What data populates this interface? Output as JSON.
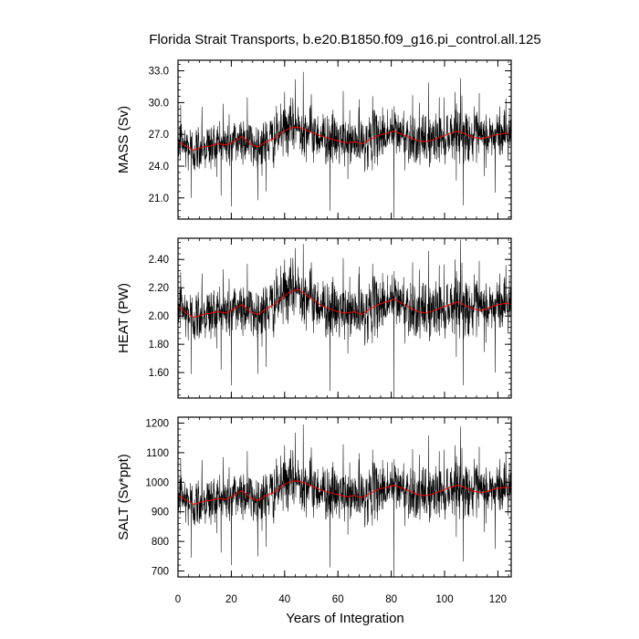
{
  "chart_data": {
    "type": "line",
    "title": "Florida Strait Transports, b.e20.B1850.f09_g16.pi_control.all.125",
    "xlabel": "Years of Integration",
    "xlim": [
      0,
      125
    ],
    "xticks": [
      0,
      20,
      40,
      60,
      80,
      100,
      120
    ],
    "xtick_labels": [
      "0",
      "20",
      "40",
      "60",
      "80",
      "100",
      "120"
    ],
    "colors": {
      "monthly": "#000000",
      "smoothed": "#ff0000"
    },
    "panels": [
      {
        "ylabel": "MASS (Sv)",
        "ylim": [
          19.0,
          34.0
        ],
        "yticks": [
          21.0,
          24.0,
          27.0,
          30.0,
          33.0
        ],
        "ytick_labels": [
          "21.0",
          "24.0",
          "27.0",
          "30.0",
          "33.0"
        ],
        "smooth_x": [
          0,
          3,
          6,
          9,
          12,
          15,
          18,
          21,
          24,
          27,
          30,
          33,
          36,
          39,
          42,
          45,
          48,
          51,
          54,
          57,
          60,
          63,
          66,
          69,
          72,
          75,
          78,
          81,
          84,
          87,
          90,
          93,
          96,
          99,
          102,
          105,
          108,
          111,
          114,
          117,
          120,
          123,
          125
        ],
        "smooth_y": [
          26.3,
          25.9,
          25.5,
          25.8,
          25.9,
          26.1,
          26.0,
          26.3,
          26.8,
          26.1,
          25.8,
          26.3,
          26.6,
          27.2,
          27.6,
          27.7,
          27.4,
          27.1,
          26.8,
          26.6,
          26.4,
          26.2,
          26.3,
          26.1,
          26.5,
          26.9,
          27.1,
          27.3,
          27.0,
          26.7,
          26.4,
          26.3,
          26.5,
          26.8,
          27.1,
          27.3,
          27.0,
          26.7,
          26.6,
          26.8,
          27.0,
          27.1,
          27.0
        ],
        "noise_amplitude": 1.2,
        "spikes": [
          [
            1,
            29.8
          ],
          [
            5,
            21.0
          ],
          [
            9,
            29.6
          ],
          [
            17,
            29.9
          ],
          [
            20,
            20.2
          ],
          [
            26,
            30.5
          ],
          [
            33,
            21.6
          ],
          [
            40,
            31.0
          ],
          [
            44,
            32.2
          ],
          [
            47,
            32.9
          ],
          [
            50,
            30.8
          ],
          [
            57,
            19.8
          ],
          [
            62,
            31.1
          ],
          [
            68,
            30.3
          ],
          [
            73,
            30.6
          ],
          [
            81,
            19.1
          ],
          [
            88,
            30.7
          ],
          [
            94,
            31.9
          ],
          [
            98,
            30.5
          ],
          [
            104,
            31.0
          ],
          [
            106,
            32.3
          ],
          [
            107,
            20.3
          ],
          [
            113,
            30.9
          ],
          [
            119,
            21.5
          ],
          [
            123,
            30.4
          ]
        ]
      },
      {
        "ylabel": "HEAT (PW)",
        "ylim": [
          1.42,
          2.55
        ],
        "yticks": [
          1.6,
          1.8,
          2.0,
          2.2,
          2.4
        ],
        "ytick_labels": [
          "1.60",
          "1.80",
          "2.00",
          "2.20",
          "2.40"
        ],
        "smooth_x": [
          0,
          3,
          6,
          9,
          12,
          15,
          18,
          21,
          24,
          27,
          30,
          33,
          36,
          39,
          42,
          45,
          48,
          51,
          54,
          57,
          60,
          63,
          66,
          69,
          72,
          75,
          78,
          81,
          84,
          87,
          90,
          93,
          96,
          99,
          102,
          105,
          108,
          111,
          114,
          117,
          120,
          123,
          125
        ],
        "smooth_y": [
          2.07,
          2.02,
          1.99,
          2.01,
          2.02,
          2.03,
          2.02,
          2.05,
          2.08,
          2.03,
          2.01,
          2.05,
          2.08,
          2.13,
          2.17,
          2.19,
          2.15,
          2.11,
          2.07,
          2.05,
          2.03,
          2.02,
          2.03,
          2.01,
          2.05,
          2.08,
          2.1,
          2.12,
          2.09,
          2.06,
          2.03,
          2.02,
          2.04,
          2.06,
          2.08,
          2.1,
          2.07,
          2.05,
          2.04,
          2.06,
          2.08,
          2.09,
          2.08
        ],
        "noise_amplitude": 0.1,
        "spikes": [
          [
            1,
            2.31
          ],
          [
            5,
            1.59
          ],
          [
            9,
            2.3
          ],
          [
            17,
            2.33
          ],
          [
            20,
            1.51
          ],
          [
            26,
            2.37
          ],
          [
            33,
            1.64
          ],
          [
            40,
            2.4
          ],
          [
            44,
            2.48
          ],
          [
            47,
            2.51
          ],
          [
            50,
            2.38
          ],
          [
            57,
            1.47
          ],
          [
            62,
            2.41
          ],
          [
            68,
            2.35
          ],
          [
            73,
            2.37
          ],
          [
            81,
            1.42
          ],
          [
            88,
            2.38
          ],
          [
            94,
            2.46
          ],
          [
            98,
            2.36
          ],
          [
            104,
            2.4
          ],
          [
            106,
            2.54
          ],
          [
            107,
            1.51
          ],
          [
            113,
            2.39
          ],
          [
            119,
            1.6
          ],
          [
            123,
            2.36
          ]
        ]
      },
      {
        "ylabel": "SALT (Sv*ppt)",
        "ylim": [
          680,
          1220
        ],
        "yticks": [
          700,
          800,
          900,
          1000,
          1100,
          1200
        ],
        "ytick_labels": [
          "700",
          "800",
          "900",
          "1000",
          "1100",
          "1200"
        ],
        "smooth_x": [
          0,
          3,
          6,
          9,
          12,
          15,
          18,
          21,
          24,
          27,
          30,
          33,
          36,
          39,
          42,
          45,
          48,
          51,
          54,
          57,
          60,
          63,
          66,
          69,
          72,
          75,
          78,
          81,
          84,
          87,
          90,
          93,
          96,
          99,
          102,
          105,
          108,
          111,
          114,
          117,
          120,
          123,
          125
        ],
        "smooth_y": [
          955,
          940,
          925,
          935,
          938,
          945,
          942,
          955,
          972,
          948,
          938,
          955,
          965,
          988,
          1002,
          1005,
          995,
          984,
          972,
          965,
          958,
          951,
          955,
          948,
          962,
          976,
          983,
          990,
          980,
          969,
          958,
          955,
          962,
          972,
          983,
          990,
          980,
          969,
          965,
          972,
          980,
          983,
          980
        ],
        "noise_amplitude": 45,
        "spikes": [
          [
            1,
            1080
          ],
          [
            5,
            745
          ],
          [
            9,
            1075
          ],
          [
            17,
            1085
          ],
          [
            20,
            720
          ],
          [
            26,
            1105
          ],
          [
            33,
            782
          ],
          [
            40,
            1125
          ],
          [
            44,
            1168
          ],
          [
            47,
            1195
          ],
          [
            50,
            1118
          ],
          [
            57,
            712
          ],
          [
            62,
            1128
          ],
          [
            68,
            1098
          ],
          [
            73,
            1110
          ],
          [
            81,
            680
          ],
          [
            88,
            1112
          ],
          [
            94,
            1158
          ],
          [
            98,
            1105
          ],
          [
            104,
            1125
          ],
          [
            106,
            1188
          ],
          [
            107,
            732
          ],
          [
            113,
            1120
          ],
          [
            119,
            775
          ],
          [
            123,
            1102
          ]
        ]
      }
    ]
  }
}
